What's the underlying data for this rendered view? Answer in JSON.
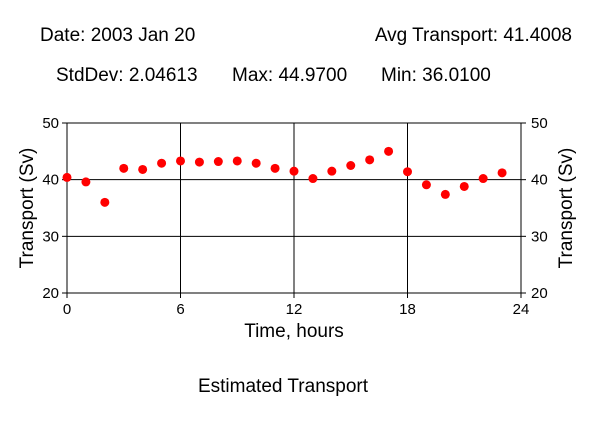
{
  "header": {
    "date": "Date: 2003 Jan 20",
    "avg": "Avg Transport: 41.4008",
    "stddev": "StdDev: 2.04613",
    "max": "Max: 44.9700",
    "min": "Min: 36.0100"
  },
  "caption": "Estimated Transport",
  "chart_data": {
    "type": "scatter",
    "xlabel": "Time, hours",
    "ylabel": "Transport (Sv)",
    "xlim": [
      0,
      24
    ],
    "ylim": [
      20,
      50
    ],
    "x_ticks": [
      0,
      6,
      12,
      18,
      24
    ],
    "y_ticks": [
      20,
      30,
      40,
      50
    ],
    "x_tick_labels": [
      "0",
      "6",
      "12",
      "18",
      "24"
    ],
    "y_tick_labels": [
      "20",
      "30",
      "40",
      "50"
    ],
    "grid": true,
    "marker_color": "#ff0000",
    "x": [
      0,
      1,
      2,
      3,
      4,
      5,
      6,
      7,
      8,
      9,
      10,
      11,
      12,
      13,
      14,
      15,
      16,
      17,
      18,
      19,
      20,
      21,
      22,
      23
    ],
    "y": [
      40.4,
      39.6,
      36.0,
      42.0,
      41.8,
      42.9,
      43.3,
      43.1,
      43.2,
      43.3,
      42.9,
      42.0,
      41.5,
      40.2,
      41.5,
      42.5,
      43.5,
      45.0,
      41.4,
      39.1,
      37.4,
      38.8,
      40.2,
      41.2
    ]
  }
}
